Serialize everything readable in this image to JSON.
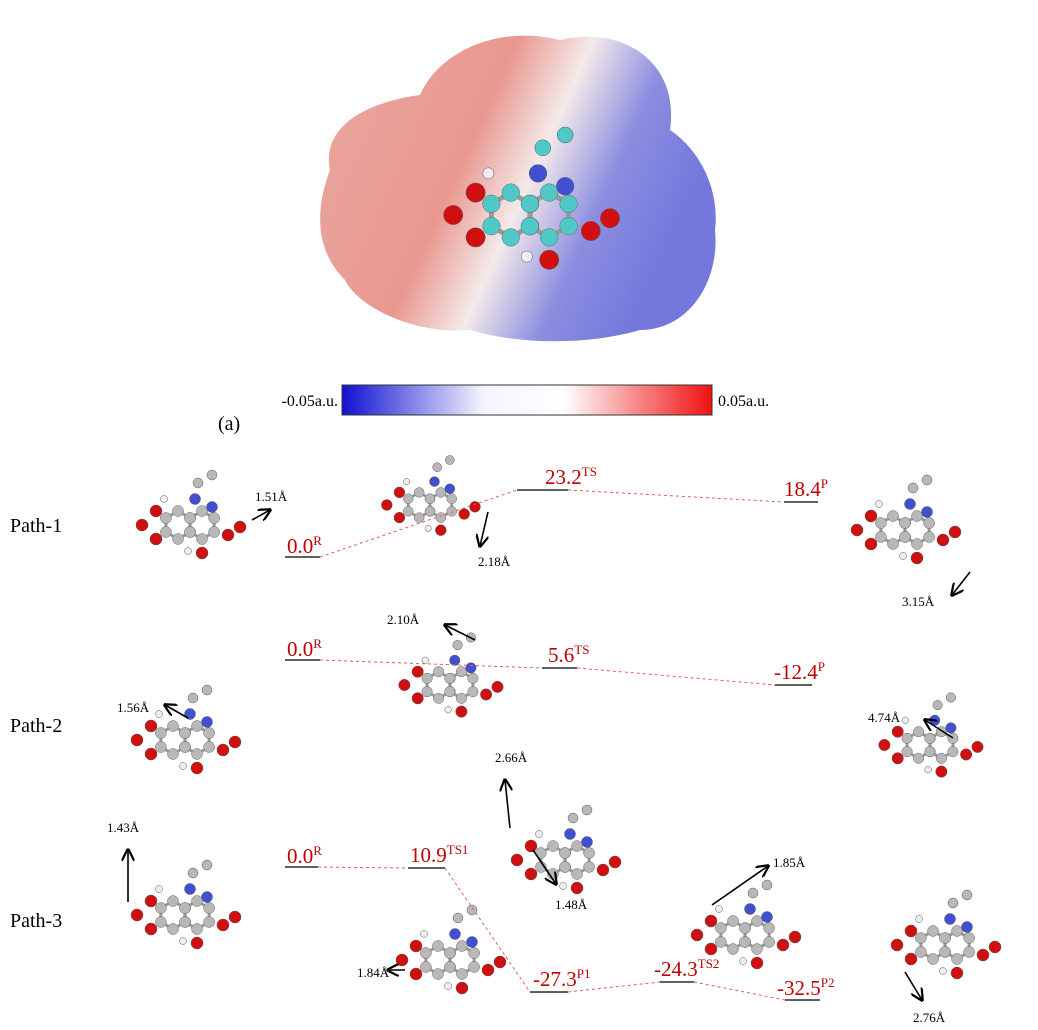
{
  "colorbar": {
    "min_label": "-0.05a.u.",
    "max_label": "0.05a.u.",
    "panel_label": "(a)"
  },
  "paths": [
    {
      "label": "Path-1",
      "levels": [
        {
          "energy": "0.0",
          "sup": "R"
        },
        {
          "energy": "23.2",
          "sup": "TS"
        },
        {
          "energy": "18.4",
          "sup": "P"
        }
      ],
      "distances": [
        "1.51Å",
        "2.18Å",
        "3.15Å"
      ]
    },
    {
      "label": "Path-2",
      "levels": [
        {
          "energy": "0.0",
          "sup": "R"
        },
        {
          "energy": "5.6",
          "sup": "TS"
        },
        {
          "energy": "-12.4",
          "sup": "P"
        }
      ],
      "distances": [
        "2.10Å",
        "1.56Å",
        "4.74Å"
      ]
    },
    {
      "label": "Path-3",
      "levels": [
        {
          "energy": "0.0",
          "sup": "R"
        },
        {
          "energy": "10.9",
          "sup": "TS1"
        },
        {
          "energy": "-27.3",
          "sup": "P1"
        },
        {
          "energy": "-24.3",
          "sup": "TS2"
        },
        {
          "energy": "-32.5",
          "sup": "P2"
        }
      ],
      "distances": [
        "1.43Å",
        "2.66Å",
        "1.48Å",
        "1.84Å",
        "1.85Å",
        "2.76Å"
      ]
    }
  ]
}
